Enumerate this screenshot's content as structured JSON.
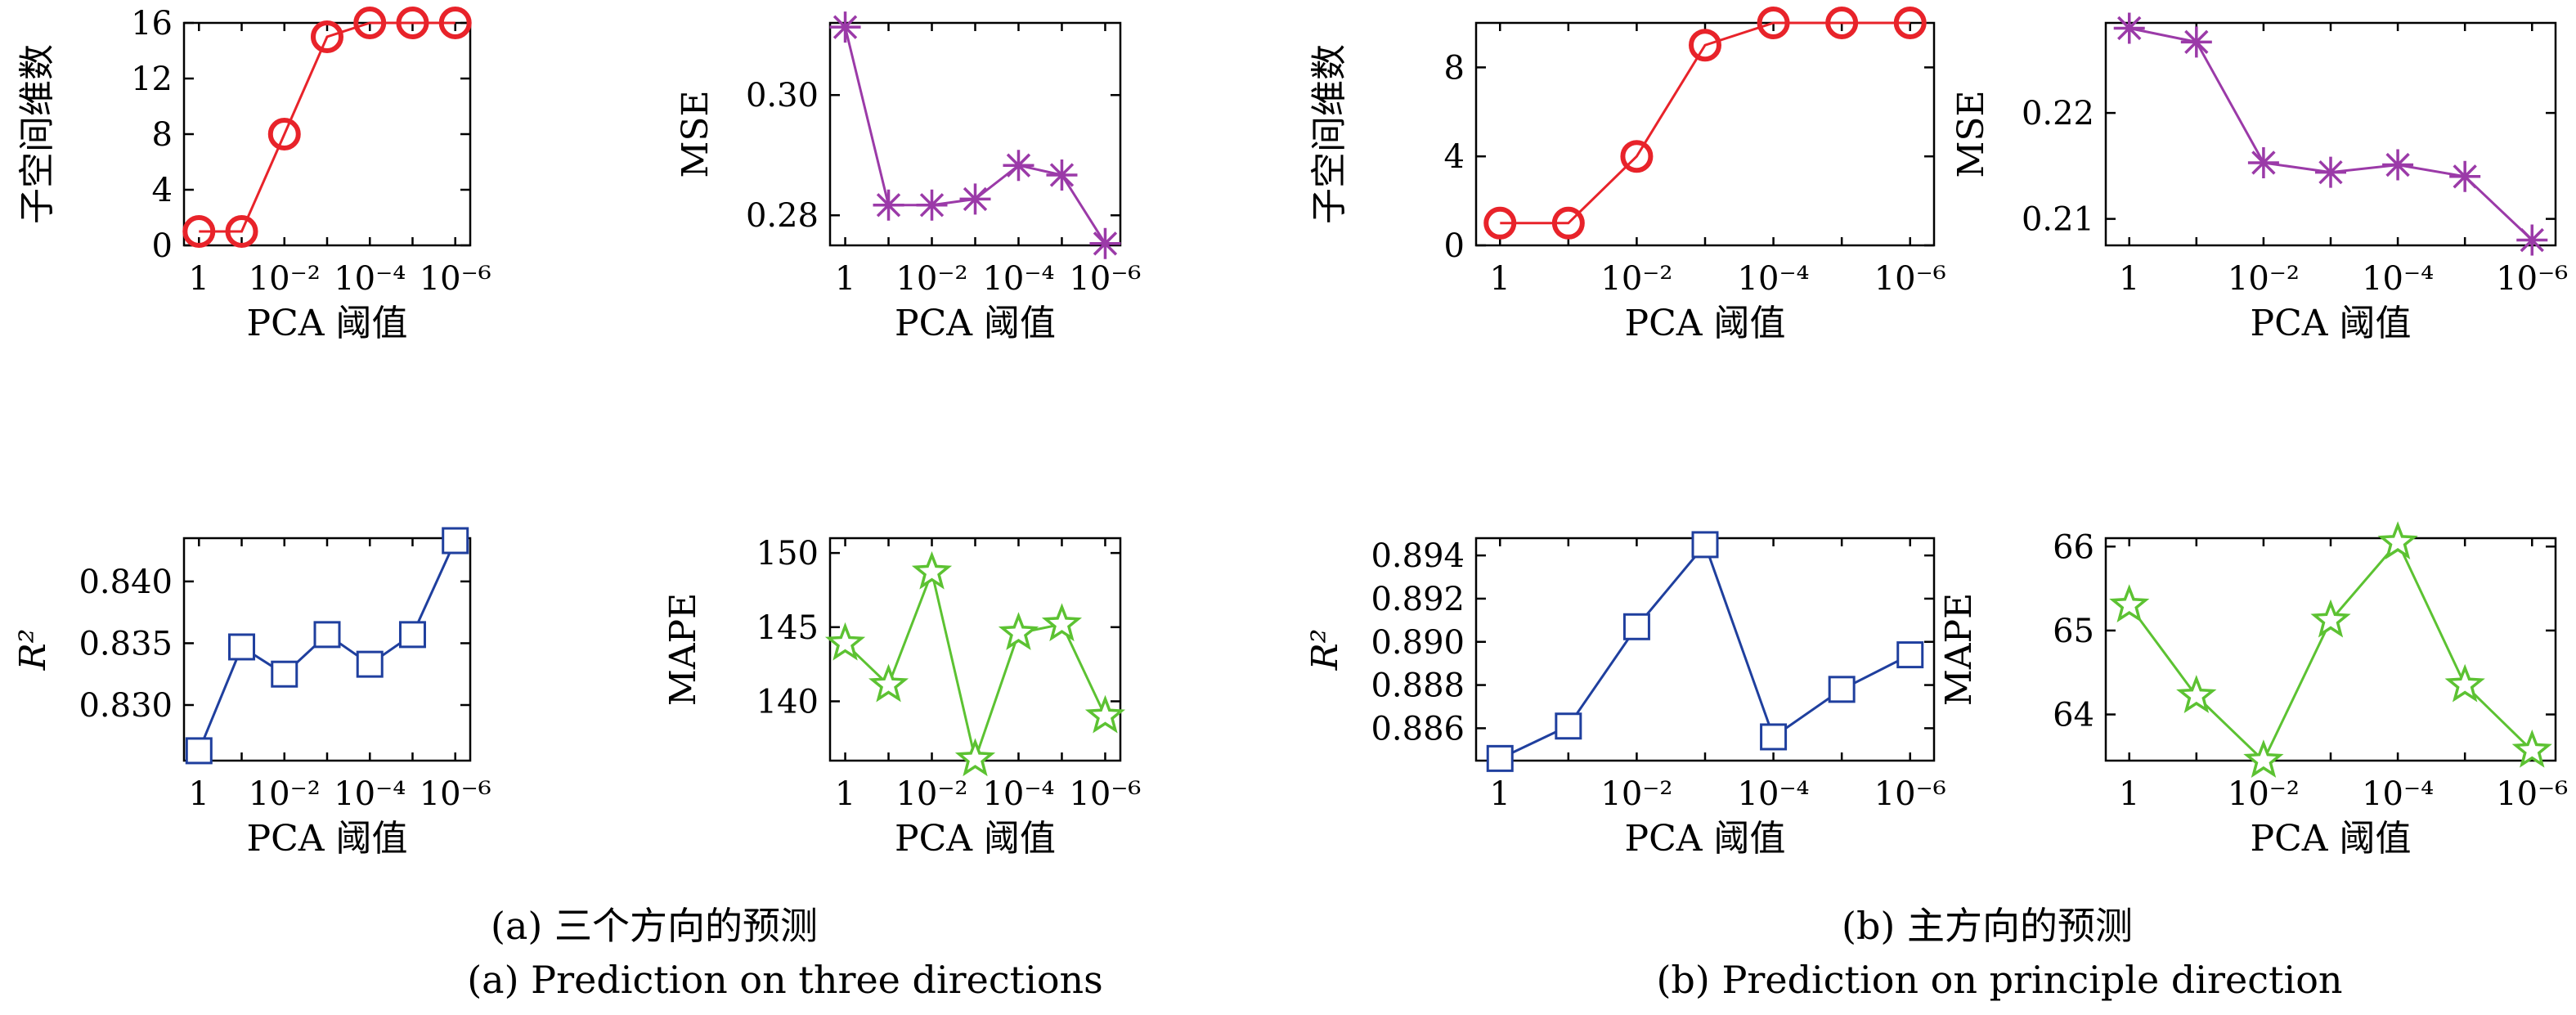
{
  "captions": {
    "a_cn": "(a) 三个方向的预测",
    "a_en": "(a) Prediction on three directions",
    "b_cn": "(b) 主方向的预测",
    "b_en": "(b) Prediction on principle direction"
  },
  "chart_data": [
    {
      "id": "a-dim",
      "group": "a",
      "type": "line",
      "x": [
        1,
        0.1,
        0.01,
        0.001,
        0.0001,
        1e-05,
        1e-06
      ],
      "xtick_labels": [
        {
          "x": 1,
          "label": "1"
        },
        {
          "x": 0.01,
          "label": "10⁻²"
        },
        {
          "x": 0.0001,
          "label": "10⁻⁴"
        },
        {
          "x": 1e-06,
          "label": "10⁻⁶"
        }
      ],
      "xlabel": "PCA 阈值",
      "ylabel": "子空间维数",
      "ylim": [
        0,
        16
      ],
      "yticks": [
        0,
        4,
        8,
        12,
        16
      ],
      "ytick_labels": [
        "0",
        "4",
        "8",
        "12",
        "16"
      ],
      "color": "#e8232a",
      "marker": "circle",
      "values": [
        1,
        1,
        8,
        15,
        16,
        16,
        16
      ]
    },
    {
      "id": "a-mse",
      "group": "a",
      "type": "line",
      "x": [
        1,
        0.1,
        0.01,
        0.001,
        0.0001,
        1e-05,
        1e-06
      ],
      "xtick_labels": [
        {
          "x": 1,
          "label": "1"
        },
        {
          "x": 0.01,
          "label": "10⁻²"
        },
        {
          "x": 0.0001,
          "label": "10⁻⁴"
        },
        {
          "x": 1e-06,
          "label": "10⁻⁶"
        }
      ],
      "xlabel": "PCA 阈值",
      "ylabel": "MSE",
      "ylim": [
        0.275,
        0.312
      ],
      "yticks": [
        0.28,
        0.3
      ],
      "ytick_labels": [
        "0.28",
        "0.30"
      ],
      "color": "#9b3aa8",
      "marker": "asterisk",
      "values": [
        0.3113,
        0.2817,
        0.2817,
        0.2827,
        0.2883,
        0.2867,
        0.2753
      ]
    },
    {
      "id": "b-dim",
      "group": "b",
      "type": "line",
      "x": [
        1,
        0.1,
        0.01,
        0.001,
        0.0001,
        1e-05,
        1e-06
      ],
      "xtick_labels": [
        {
          "x": 1,
          "label": "1"
        },
        {
          "x": 0.01,
          "label": "10⁻²"
        },
        {
          "x": 0.0001,
          "label": "10⁻⁴"
        },
        {
          "x": 1e-06,
          "label": "10⁻⁶"
        }
      ],
      "xlabel": "PCA 阈值",
      "ylabel": "子空间维数",
      "ylim": [
        0,
        10
      ],
      "yticks": [
        0,
        4,
        8
      ],
      "ytick_labels": [
        "0",
        "4",
        "8"
      ],
      "color": "#e8232a",
      "marker": "circle",
      "values": [
        1,
        1,
        4,
        9,
        10,
        10,
        10
      ]
    },
    {
      "id": "b-mse",
      "group": "b",
      "type": "line",
      "x": [
        1,
        0.1,
        0.01,
        0.001,
        0.0001,
        1e-05,
        1e-06
      ],
      "xtick_labels": [
        {
          "x": 1,
          "label": "1"
        },
        {
          "x": 0.01,
          "label": "10⁻²"
        },
        {
          "x": 0.0001,
          "label": "10⁻⁴"
        },
        {
          "x": 1e-06,
          "label": "10⁻⁶"
        }
      ],
      "xlabel": "PCA 阈值",
      "ylabel": "MSE",
      "ylim": [
        0.2075,
        0.2285
      ],
      "yticks": [
        0.21,
        0.22
      ],
      "ytick_labels": [
        "0.21",
        "0.22"
      ],
      "color": "#9b3aa8",
      "marker": "asterisk",
      "values": [
        0.228,
        0.2267,
        0.2153,
        0.2144,
        0.2151,
        0.214,
        0.208
      ]
    },
    {
      "id": "a-r2",
      "group": "a",
      "type": "line",
      "x": [
        1,
        0.1,
        0.01,
        0.001,
        0.0001,
        1e-05,
        1e-06
      ],
      "xtick_labels": [
        {
          "x": 1,
          "label": "1"
        },
        {
          "x": 0.01,
          "label": "10⁻²"
        },
        {
          "x": 0.0001,
          "label": "10⁻⁴"
        },
        {
          "x": 1e-06,
          "label": "10⁻⁶"
        }
      ],
      "xlabel": "PCA 阈值",
      "ylabel": "R²",
      "ylim": [
        0.8255,
        0.8435
      ],
      "yticks": [
        0.83,
        0.835,
        0.84
      ],
      "ytick_labels": [
        "0.830",
        "0.835",
        "0.840"
      ],
      "color": "#1f3f9e",
      "marker": "square",
      "values": [
        0.8263,
        0.8347,
        0.8325,
        0.8357,
        0.8333,
        0.8357,
        0.8433
      ]
    },
    {
      "id": "a-mape",
      "group": "a",
      "type": "line",
      "x": [
        1,
        0.1,
        0.01,
        0.001,
        0.0001,
        1e-05,
        1e-06
      ],
      "xtick_labels": [
        {
          "x": 1,
          "label": "1"
        },
        {
          "x": 0.01,
          "label": "10⁻²"
        },
        {
          "x": 0.0001,
          "label": "10⁻⁴"
        },
        {
          "x": 1e-06,
          "label": "10⁻⁶"
        }
      ],
      "xlabel": "PCA 阈值",
      "ylabel": "MAPE",
      "ylim": [
        136,
        151
      ],
      "yticks": [
        140,
        145,
        150
      ],
      "ytick_labels": [
        "140",
        "145",
        "150"
      ],
      "color": "#5cc232",
      "marker": "star",
      "values": [
        143.9,
        141.1,
        148.7,
        136.1,
        144.6,
        145.2,
        139.0
      ]
    },
    {
      "id": "b-r2",
      "group": "b",
      "type": "line",
      "x": [
        1,
        0.1,
        0.01,
        0.001,
        0.0001,
        1e-05,
        1e-06
      ],
      "xtick_labels": [
        {
          "x": 1,
          "label": "1"
        },
        {
          "x": 0.01,
          "label": "10⁻²"
        },
        {
          "x": 0.0001,
          "label": "10⁻⁴"
        },
        {
          "x": 1e-06,
          "label": "10⁻⁶"
        }
      ],
      "xlabel": "PCA 阈值",
      "ylabel": "R²",
      "ylim": [
        0.8845,
        0.8948
      ],
      "yticks": [
        0.886,
        0.888,
        0.89,
        0.892,
        0.894
      ],
      "ytick_labels": [
        "0.886",
        "0.888",
        "0.890",
        "0.892",
        "0.894"
      ],
      "color": "#1f3f9e",
      "marker": "square",
      "values": [
        0.8846,
        0.8861,
        0.8907,
        0.8945,
        0.8856,
        0.8878,
        0.8894
      ]
    },
    {
      "id": "b-mape",
      "group": "b",
      "type": "line",
      "x": [
        1,
        0.1,
        0.01,
        0.001,
        0.0001,
        1e-05,
        1e-06
      ],
      "xtick_labels": [
        {
          "x": 1,
          "label": "1"
        },
        {
          "x": 0.01,
          "label": "10⁻²"
        },
        {
          "x": 0.0001,
          "label": "10⁻⁴"
        },
        {
          "x": 1e-06,
          "label": "10⁻⁶"
        }
      ],
      "xlabel": "PCA 阈值",
      "ylabel": "MAPE",
      "ylim": [
        63.45,
        66.1
      ],
      "yticks": [
        64,
        65,
        66
      ],
      "ytick_labels": [
        "64",
        "65",
        "66"
      ],
      "color": "#5cc232",
      "marker": "star",
      "values": [
        65.3,
        64.22,
        63.45,
        65.12,
        66.05,
        64.35,
        63.57
      ]
    }
  ]
}
